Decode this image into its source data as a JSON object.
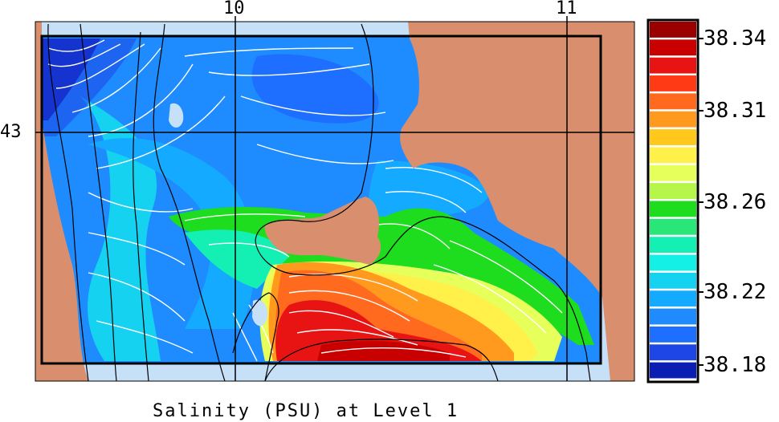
{
  "title": "Salinity (PSU) at Level 1",
  "lon_labels": [
    "10",
    "11"
  ],
  "lat_labels": [
    "43"
  ],
  "colorbar": {
    "labels": [
      "38.34",
      "38.31",
      "38.26",
      "38.22",
      "38.18"
    ],
    "colors": [
      "#9b0000",
      "#c80000",
      "#e81414",
      "#ff3a14",
      "#ff6a1e",
      "#ff9a1e",
      "#ffc81a",
      "#fff04a",
      "#e6ff5a",
      "#b6f54a",
      "#1edc1e",
      "#28e678",
      "#14f0b4",
      "#14f0e6",
      "#14d2f0",
      "#14aaff",
      "#1e8cff",
      "#1e6eff",
      "#1e46e6",
      "#0a1eb4"
    ]
  },
  "legend_colors": {
    "land": "#d98f6e",
    "shelf": "#c6e0f8",
    "frame": "#000000"
  }
}
